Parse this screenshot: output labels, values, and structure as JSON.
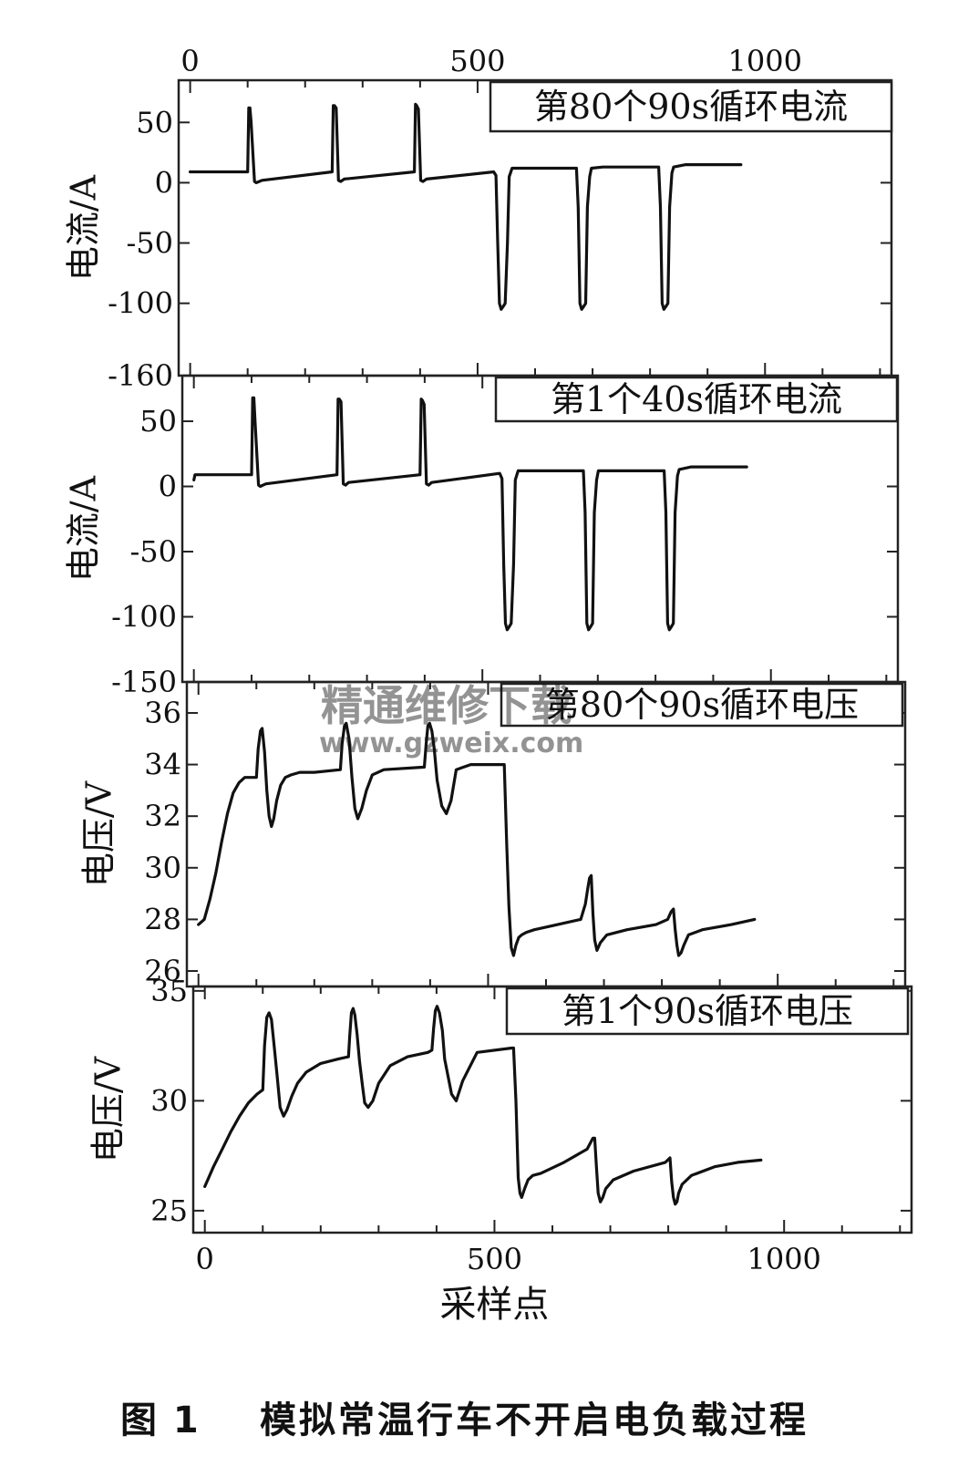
{
  "caption": {
    "number": "图 1",
    "title": "模拟常温行车不开启电负载过程"
  },
  "watermark": {
    "cn": "精通维修下载",
    "url": "www.gzweix.com"
  },
  "chart_data": [
    {
      "type": "line",
      "title": "第80个90s循环电流",
      "ylabel": "电流/A",
      "ylim": [
        -160,
        85
      ],
      "yticks": [
        50,
        0,
        -50,
        -100,
        -160
      ],
      "xlim": [
        -20,
        1220
      ],
      "xticks_top": [
        0,
        500,
        1000
      ],
      "x": [
        0,
        100,
        102,
        104,
        106,
        112,
        115,
        120,
        125,
        247,
        249,
        251,
        254,
        258,
        262,
        268,
        390,
        392,
        394,
        397,
        401,
        405,
        411,
        528,
        532,
        535,
        538,
        541,
        544,
        548,
        552,
        555,
        560,
        578,
        672,
        675,
        678,
        681,
        684,
        688,
        691,
        695,
        698,
        718,
        815,
        818,
        821,
        824,
        827,
        831,
        834,
        838,
        841,
        862,
        958
      ],
      "y": [
        9,
        9,
        62,
        62,
        50,
        1,
        0,
        1,
        2,
        9,
        64,
        64,
        62,
        2,
        1,
        3,
        9,
        65,
        64,
        61,
        2,
        1,
        3,
        9,
        6,
        -50,
        -100,
        -105,
        -103,
        -100,
        -50,
        5,
        12,
        12,
        12,
        -20,
        -100,
        -105,
        -103,
        -100,
        -20,
        5,
        12,
        13,
        13,
        -20,
        -100,
        -105,
        -103,
        -100,
        -20,
        8,
        13,
        15,
        15
      ]
    },
    {
      "type": "line",
      "title": "第1个40s循环电流",
      "ylabel": "电流/A",
      "ylim": [
        -150,
        85
      ],
      "yticks": [
        50,
        0,
        -50,
        -100,
        -150
      ],
      "xlim": [
        -20,
        1220
      ],
      "x": [
        0,
        2,
        6,
        100,
        102,
        104,
        106,
        112,
        115,
        120,
        125,
        248,
        250,
        252,
        255,
        259,
        263,
        268,
        392,
        394,
        396,
        399,
        403,
        407,
        412,
        530,
        534,
        537,
        540,
        543,
        546,
        550,
        554,
        557,
        562,
        578,
        675,
        678,
        681,
        684,
        687,
        691,
        694,
        698,
        701,
        720,
        815,
        818,
        821,
        824,
        827,
        831,
        834,
        838,
        841,
        862,
        958
      ],
      "y": [
        5,
        9,
        9,
        9,
        68,
        68,
        50,
        1,
        0,
        1,
        2,
        9,
        67,
        67,
        65,
        2,
        1,
        3,
        9,
        67,
        66,
        63,
        2,
        1,
        3,
        10,
        6,
        -60,
        -105,
        -110,
        -108,
        -105,
        -60,
        5,
        12,
        12,
        12,
        -20,
        -105,
        -110,
        -108,
        -105,
        -20,
        5,
        12,
        12,
        12,
        -20,
        -105,
        -110,
        -108,
        -105,
        -20,
        8,
        13,
        15,
        15
      ]
    },
    {
      "type": "line",
      "title": "第80个90s循环电压",
      "ylabel": "电压/V",
      "ylim": [
        25.4,
        37.2
      ],
      "yticks": [
        36,
        34,
        32,
        30,
        28,
        26
      ],
      "xlim": [
        -20,
        1220
      ],
      "x": [
        0,
        10,
        20,
        30,
        40,
        50,
        60,
        70,
        80,
        90,
        100,
        103,
        107,
        110,
        114,
        118,
        122,
        126,
        130,
        135,
        142,
        150,
        160,
        175,
        200,
        245,
        248,
        252,
        255,
        260,
        265,
        270,
        275,
        282,
        290,
        300,
        320,
        390,
        393,
        396,
        399,
        403,
        407,
        412,
        420,
        428,
        436,
        445,
        470,
        525,
        528,
        532,
        536,
        540,
        544,
        548,
        553,
        558,
        566,
        580,
        620,
        660,
        668,
        672,
        675,
        678,
        681,
        684,
        688,
        694,
        705,
        740,
        790,
        810,
        816,
        820,
        823,
        826,
        829,
        833,
        838,
        846,
        870,
        920,
        960
      ],
      "y": [
        27.8,
        28,
        28.8,
        29.8,
        31,
        32.1,
        32.9,
        33.3,
        33.5,
        33.5,
        33.5,
        34.6,
        35.3,
        35.4,
        34.5,
        33,
        32,
        31.6,
        31.9,
        32.6,
        33.2,
        33.5,
        33.6,
        33.7,
        33.7,
        33.8,
        34.8,
        35.5,
        35.6,
        35,
        33.5,
        32.3,
        31.9,
        32.3,
        33,
        33.6,
        33.8,
        33.9,
        34.8,
        35.5,
        35.6,
        35.3,
        34.6,
        33.4,
        32.4,
        32.1,
        32.6,
        33.8,
        34,
        34,
        34,
        31,
        28.5,
        26.9,
        26.6,
        27,
        27.3,
        27.4,
        27.5,
        27.6,
        27.8,
        28,
        28.6,
        29.2,
        29.6,
        29.7,
        28.2,
        27.2,
        26.8,
        27.1,
        27.4,
        27.6,
        27.8,
        28,
        28.3,
        28.4,
        27.6,
        27,
        26.6,
        26.7,
        27,
        27.4,
        27.6,
        27.8,
        28
      ]
    },
    {
      "type": "line",
      "title": "第1个90s循环电压",
      "ylabel": "电压/V",
      "ylim": [
        24,
        35.2
      ],
      "yticks": [
        35,
        30,
        25
      ],
      "xlim": [
        -20,
        1220
      ],
      "xticks": [
        0,
        500,
        1000
      ],
      "xlabel": "采样点",
      "x": [
        0,
        15,
        30,
        45,
        60,
        75,
        90,
        100,
        103,
        107,
        111,
        115,
        120,
        125,
        130,
        136,
        142,
        150,
        160,
        175,
        200,
        230,
        248,
        250,
        253,
        256,
        259,
        263,
        267,
        272,
        276,
        282,
        290,
        300,
        320,
        350,
        385,
        392,
        395,
        398,
        401,
        405,
        410,
        414,
        420,
        426,
        434,
        445,
        470,
        530,
        533,
        537,
        541,
        544,
        547,
        552,
        558,
        566,
        580,
        620,
        660,
        670,
        673,
        676,
        679,
        683,
        687,
        692,
        705,
        740,
        795,
        803,
        806,
        809,
        812,
        815,
        818,
        824,
        840,
        880,
        920,
        960
      ],
      "y": [
        26.1,
        27,
        27.8,
        28.6,
        29.3,
        29.9,
        30.3,
        30.5,
        32.5,
        33.8,
        34,
        33.7,
        32.4,
        31.1,
        29.7,
        29.3,
        29.6,
        30.2,
        30.8,
        31.3,
        31.7,
        31.9,
        32,
        32.9,
        34,
        34.2,
        33.9,
        33,
        31.8,
        30.7,
        29.9,
        29.7,
        30,
        30.8,
        31.6,
        32,
        32.2,
        32.3,
        33.3,
        34.1,
        34.3,
        34,
        33.2,
        31.9,
        31.1,
        30.3,
        30,
        30.9,
        32.2,
        32.4,
        32.4,
        30,
        26.5,
        25.8,
        25.6,
        26,
        26.4,
        26.6,
        26.7,
        27.2,
        27.8,
        28.3,
        28.3,
        27,
        25.8,
        25.4,
        25.6,
        26,
        26.4,
        26.8,
        27.2,
        27.4,
        26.3,
        25.6,
        25.3,
        25.4,
        25.8,
        26.2,
        26.6,
        27,
        27.2,
        27.3
      ]
    }
  ]
}
